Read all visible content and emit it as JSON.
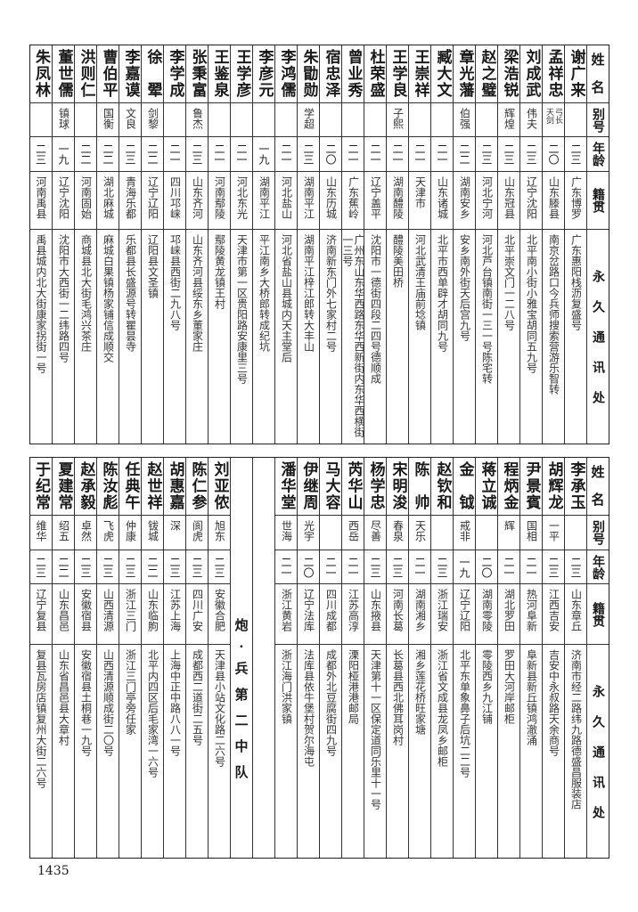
{
  "headers": {
    "name": "姓名",
    "alias": "别号",
    "age": "年龄",
    "origin": "籍贯",
    "address": "永久通讯处"
  },
  "top_table": [
    {
      "name": "谢广来",
      "alias": "",
      "age": "二三",
      "origin": "广东博罗",
      "address": "广东惠阳栈沥复盛号"
    },
    {
      "name": "孟祥忠",
      "alias": "弓长天剑",
      "age": "二〇",
      "origin": "山东滕县",
      "address": "南京岔路口今兵师搜索营游乐智转"
    },
    {
      "name": "刘成武",
      "alias": "伟夫",
      "age": "二三",
      "origin": "辽宁沈阳",
      "address": "北平南小街小雅宝胡同五九号"
    },
    {
      "name": "梁浩锐",
      "alias": "辉煌",
      "age": "二三",
      "origin": "山东冠县",
      "address": "北平崇文门一二八号"
    },
    {
      "name": "赵之璧",
      "alias": "",
      "age": "二三",
      "origin": "河北宁河",
      "address": "河北芦台镇南街一三一号陈宅转"
    },
    {
      "name": "章光藩",
      "alias": "伯强",
      "age": "二二",
      "origin": "湖南安乡",
      "address": "安乡南外街天后宫九号"
    },
    {
      "name": "臧大文",
      "alias": "",
      "age": "二一",
      "origin": "山东诸城",
      "address": "北平市西单辟才胡同九号"
    },
    {
      "name": "王崇祥",
      "alias": "",
      "age": "二一",
      "origin": "天津市",
      "address": "河北武清王庙前埝镇"
    },
    {
      "name": "王学良",
      "alias": "子熙",
      "age": "二一",
      "origin": "湖南醴陵",
      "address": "醴陵美田桥"
    },
    {
      "name": "杜荣盛",
      "alias": "",
      "age": "二一",
      "origin": "辽宁盖平",
      "address": "沈阳市一德街四段二四号德顺成"
    },
    {
      "name": "曾业秀",
      "alias": "",
      "age": "二一",
      "origin": "广东蕉岭",
      "address": "广州东山东华西路东华西新街内东华西横街一三号"
    },
    {
      "name": "宿忠泽",
      "alias": "",
      "age": "二〇",
      "origin": "山东历城",
      "address": "济南新东门外七家村二号"
    },
    {
      "name": "朱勖勋",
      "alias": "学超",
      "age": "二三",
      "origin": "湖南平江",
      "address": "湖南平江梓江郎转大丰山"
    },
    {
      "name": "李鸿儒",
      "alias": "",
      "age": "二一",
      "origin": "河北盐山",
      "address": "河北省盐山县城内天主堂后"
    },
    {
      "name": "李彦元",
      "alias": "",
      "age": "一九",
      "origin": "湖南平江",
      "address": "平江南乡大桥郎转成纪坑"
    },
    {
      "name": "王学彦",
      "alias": "",
      "age": "二一",
      "origin": "河北东光",
      "address": "天津市第一区贵阳路安康里三号"
    },
    {
      "name": "王鉴泉",
      "alias": "",
      "age": "二一",
      "origin": "河南鄢陵",
      "address": "鄢陵黄龙镇王村"
    },
    {
      "name": "张秉富",
      "alias": "鲁杰",
      "age": "二三",
      "origin": "山东齐河",
      "address": "山东齐河县绥东乡董家庄"
    },
    {
      "name": "李学成",
      "alias": "",
      "age": "二一",
      "origin": "四川邛崃",
      "address": "邛崃县西街二九八号"
    },
    {
      "name": "徐翚",
      "alias": "剑黎",
      "age": "二二",
      "origin": "辽宁辽阳",
      "address": "辽阳县文圣镇"
    },
    {
      "name": "李嘉谟",
      "alias": "文良",
      "age": "二三",
      "origin": "青海乐都",
      "address": "乐都县长盛源号转瞿昙寺"
    },
    {
      "name": "曹伯平",
      "alias": "国衡",
      "age": "二二",
      "origin": "湖北麻城",
      "address": "麻城白果镇杨家铺信成顺交"
    },
    {
      "name": "洪则仁",
      "alias": "",
      "age": "二二",
      "origin": "河南固始",
      "address": "商城县北大街毛鸿兴茶庄"
    },
    {
      "name": "董世儒",
      "alias": "镇球",
      "age": "一九",
      "origin": "辽宁沈阳",
      "address": "沈阳市大西街一二纬路四号"
    },
    {
      "name": "朱凤林",
      "alias": "",
      "age": "二三",
      "origin": "河南禹县",
      "address": "禹县城内北大街康家拐街一号"
    }
  ],
  "bottom_table": {
    "rows_before": [
      {
        "name": "李承玉",
        "alias": "",
        "age": "二三",
        "origin": "山东章丘",
        "address": "济南市经二路纬九路德盛昌服装店"
      },
      {
        "name": "胡辉龙",
        "alias": "一平",
        "age": "二三",
        "origin": "江西吉安",
        "address": "吉安中永叔路天余商号"
      },
      {
        "name": "尹景賓",
        "alias": "国相",
        "age": "二一",
        "origin": "热河阜新",
        "address": "阜新县新丘镇鸿澈涌"
      },
      {
        "name": "程炳金",
        "alias": "辉",
        "age": "二一",
        "origin": "湖北罗田",
        "address": "罗田大河岸邮柜"
      },
      {
        "name": "蒋立诚",
        "alias": "",
        "age": "二〇",
        "origin": "湖南零陵",
        "address": "零陵西乡九江铺"
      },
      {
        "name": "金钺",
        "alias": "戒非",
        "age": "一九",
        "origin": "辽宁辽阳",
        "address": "北平东单象鼻子后坑二二号"
      },
      {
        "name": "赵钦和",
        "alias": "",
        "age": "二三",
        "origin": "浙江瑞安",
        "address": "浙江省文成县龙凤乡邮柜"
      },
      {
        "name": "陈帅",
        "alias": "天乐",
        "age": "二一",
        "origin": "湖南湘乡",
        "address": "湘乡莲花桥旺家塘"
      },
      {
        "name": "宋明浚",
        "alias": "春泉",
        "age": "二三",
        "origin": "河南长葛",
        "address": "长葛县西北佛耳岗村"
      },
      {
        "name": "杨学忠",
        "alias": "尽善",
        "age": "二三",
        "origin": "山东掖县",
        "address": "天津第十一区保定道同乐里十一号"
      },
      {
        "name": "芮华山",
        "alias": "西岳",
        "age": "二一",
        "origin": "江苏高淳",
        "address": "溧阳桠港港邮局"
      },
      {
        "name": "马大容",
        "alias": "",
        "age": "二一",
        "origin": "四川成都",
        "address": "成都外北豆腐街四九号"
      },
      {
        "name": "伊继周",
        "alias": "光宇",
        "age": "二〇",
        "origin": "辽宁法库",
        "address": "法库县依牛堡村贺尔海屯"
      },
      {
        "name": "潘华堂",
        "alias": "世海",
        "age": "二一",
        "origin": "浙江黄岩",
        "address": "浙江海门洪家镇"
      }
    ],
    "section_title": "炮·兵第二中队",
    "rows_after": [
      {
        "name": "刘亚侬",
        "alias": "旭东",
        "age": "二三",
        "origin": "安徽合肥",
        "address": "天津县小站文化路二六号"
      },
      {
        "name": "陈仁参",
        "alias": "阆虎",
        "age": "二三",
        "origin": "四川广安",
        "address": "成都西二道街二五号"
      },
      {
        "name": "胡惠嘉",
        "alias": "深",
        "age": "二三",
        "origin": "江苏上海",
        "address": "上海中正中路八八一号"
      },
      {
        "name": "赵世祥",
        "alias": "钹城",
        "age": "二二",
        "origin": "山东临朐",
        "address": "北平内四区后毛家湾一六号"
      },
      {
        "name": "任典午",
        "alias": "仲康",
        "age": "二三",
        "origin": "浙江三门",
        "address": "浙江三门亭旁任家"
      },
      {
        "name": "陈汝彪",
        "alias": "飞虎",
        "age": "二三",
        "origin": "山西清源",
        "address": "山西清源顺成街二〇号"
      },
      {
        "name": "赵承毅",
        "alias": "卓然",
        "age": "二三",
        "origin": "安徽宿县",
        "address": "安徽宿县土桐巷一九号"
      },
      {
        "name": "夏建常",
        "alias": "绍五",
        "age": "二二",
        "origin": "山东昌邑",
        "address": "山东省昌邑县大章村"
      },
      {
        "name": "于纪常",
        "alias": "维华",
        "age": "二三",
        "origin": "辽宁复县",
        "address": "复县瓦房店镇复州大街二六号"
      }
    ]
  },
  "page_number": "1435"
}
